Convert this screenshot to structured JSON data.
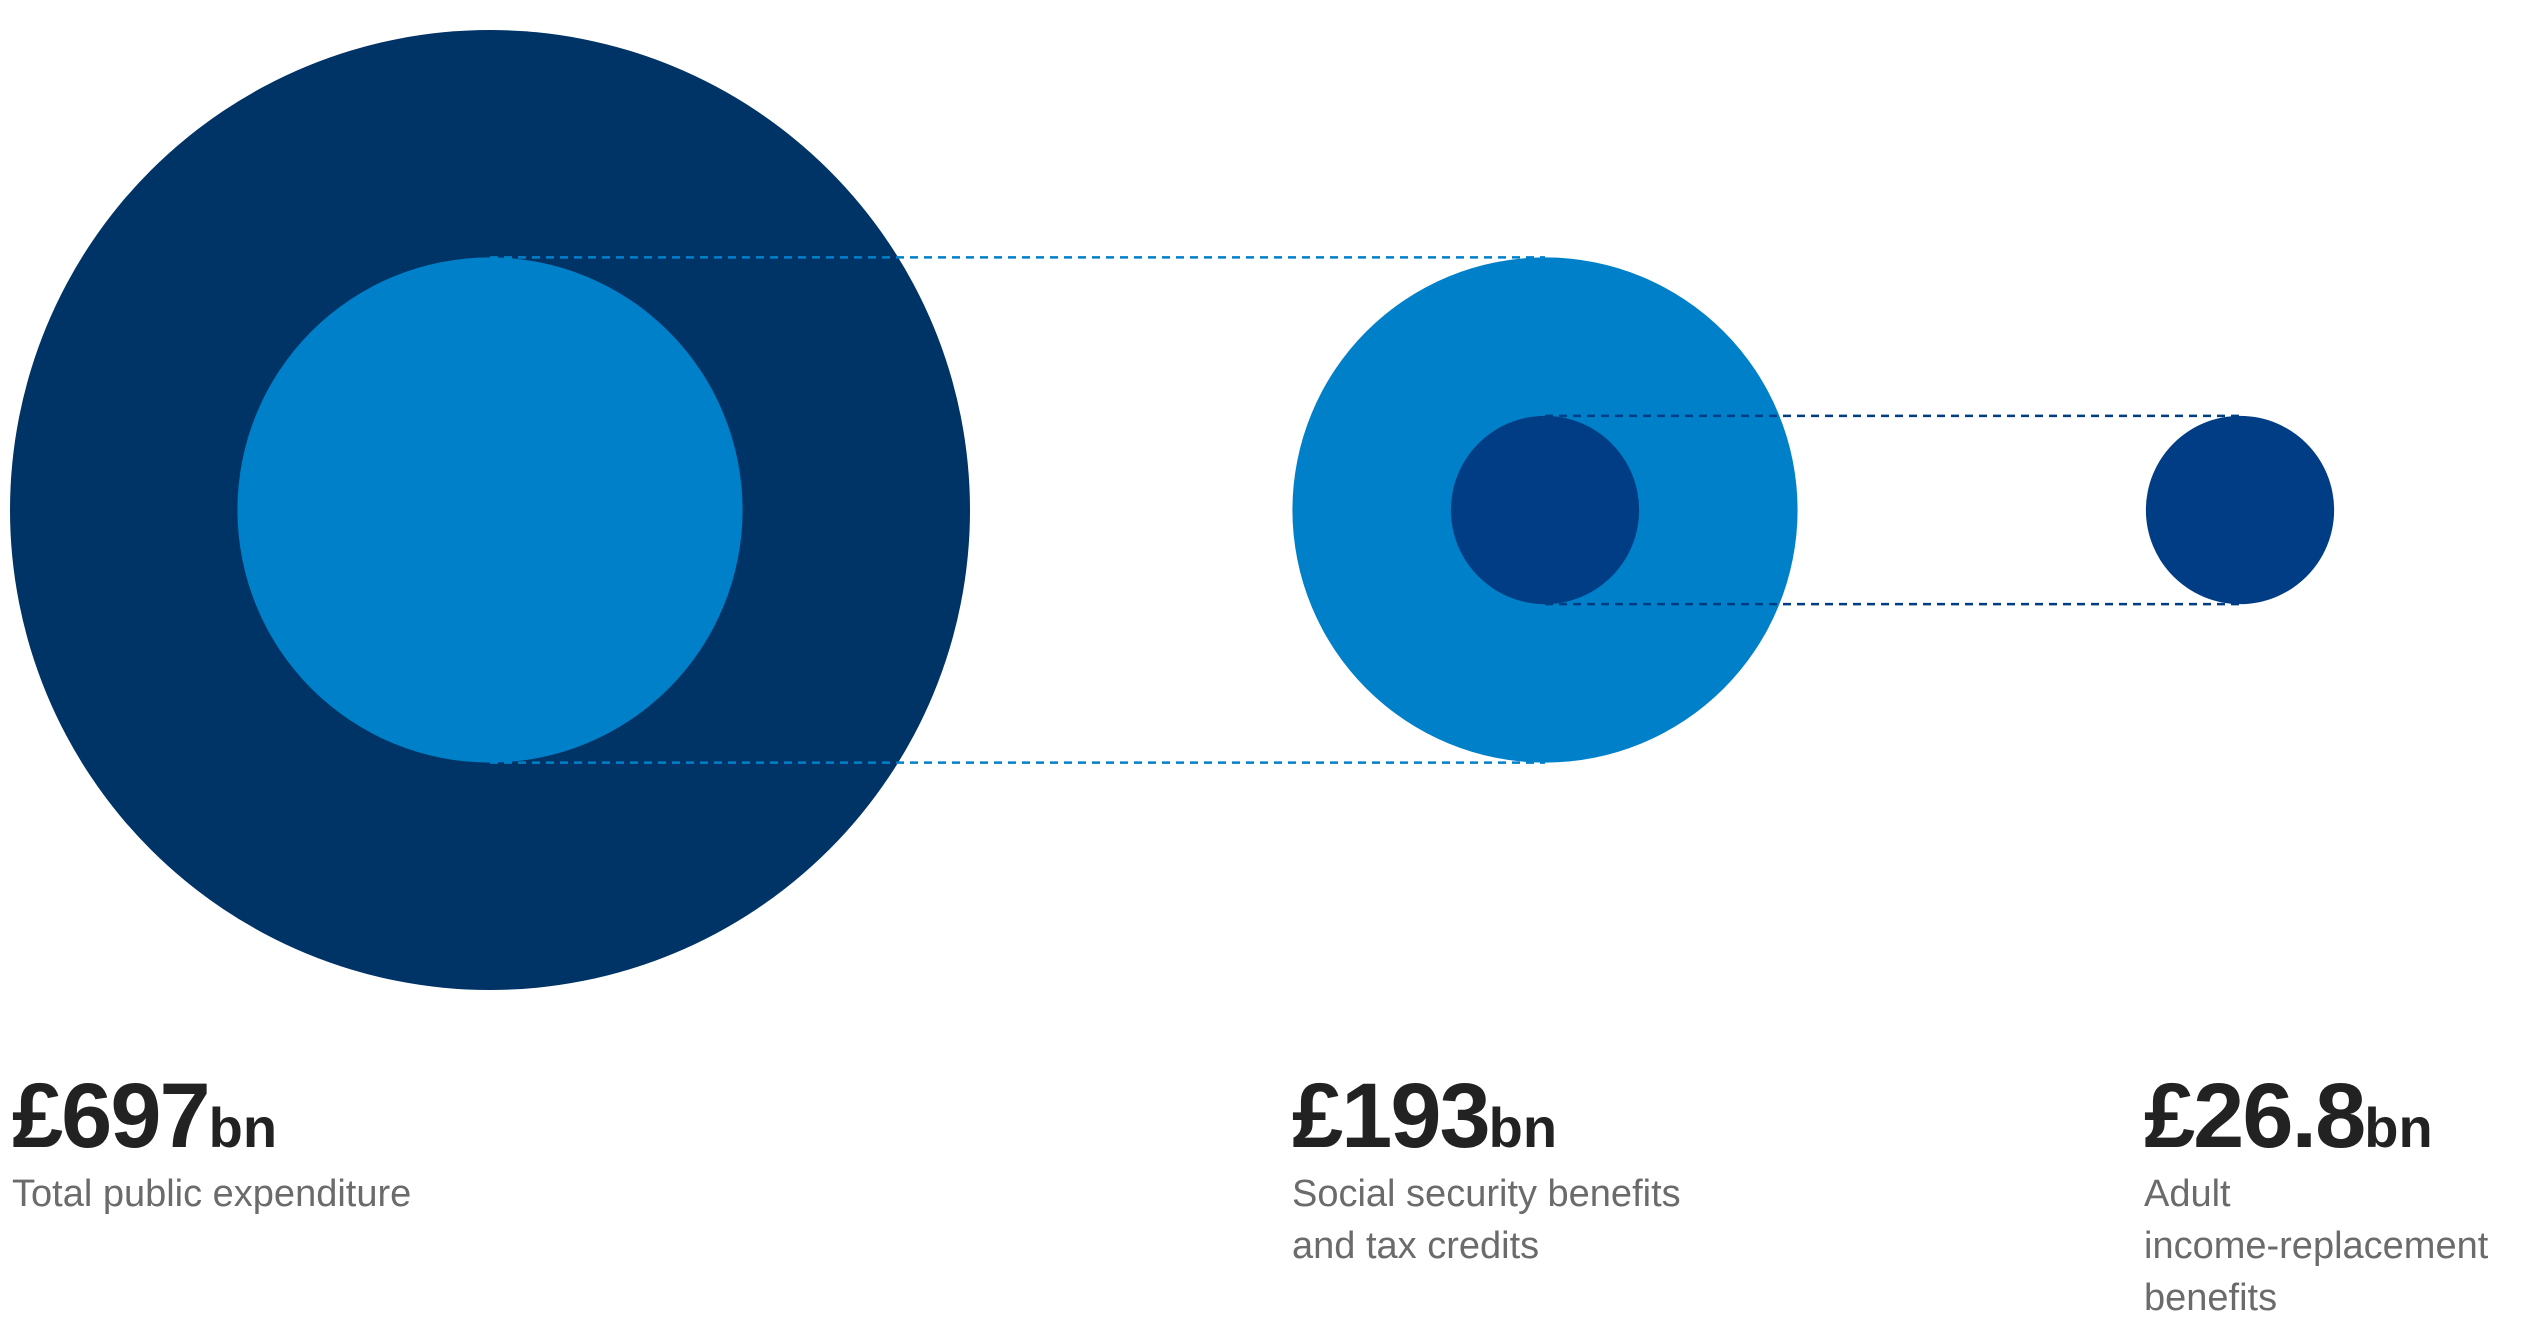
{
  "chart_data": {
    "type": "nested-bubble",
    "unit_currency": "£",
    "unit_suffix": "bn",
    "items": [
      {
        "value": 697,
        "value_text": "697",
        "label_lines": [
          "Total public expenditure"
        ],
        "color": "#003366"
      },
      {
        "value": 193,
        "value_text": "193",
        "label_lines": [
          "Social security benefits",
          "and tax credits"
        ],
        "color": "#0080C9"
      },
      {
        "value": 26.8,
        "value_text": "26.8",
        "label_lines": [
          "Adult",
          "income-replacement",
          "benefits"
        ],
        "color": "#003D85"
      }
    ],
    "connector_colors": [
      "#0080C9",
      "#003D85"
    ]
  }
}
